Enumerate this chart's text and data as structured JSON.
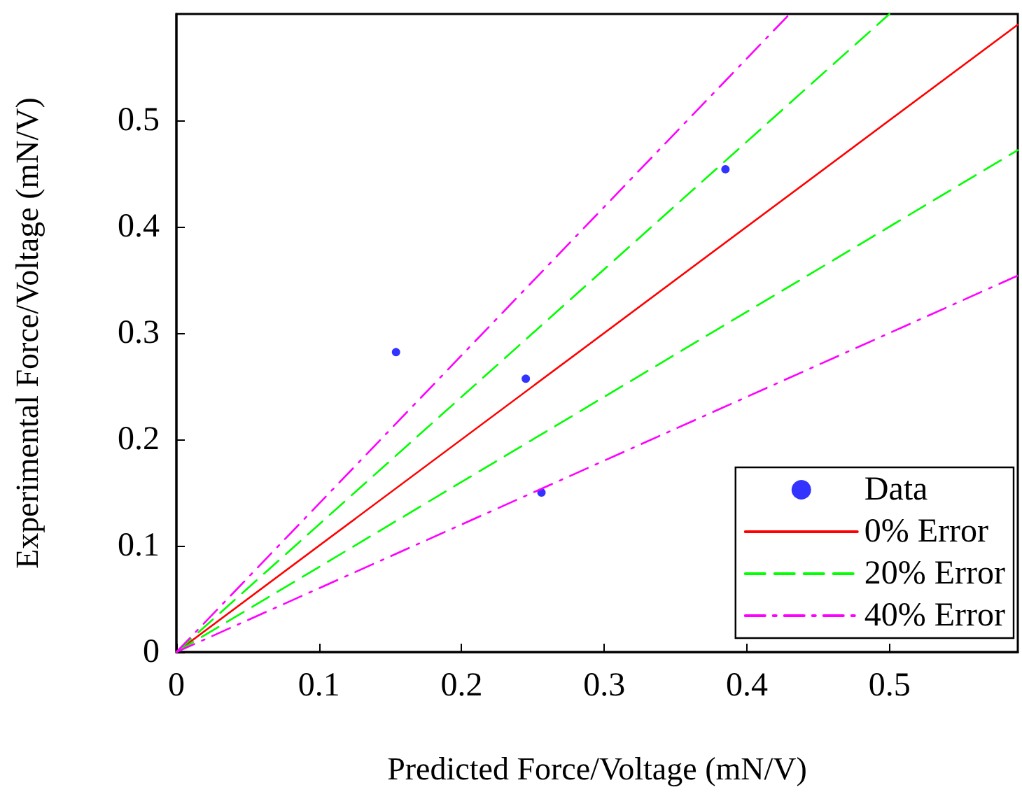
{
  "chart_data": {
    "type": "scatter",
    "xlabel": "Predicted Force/Voltage (mN/V)",
    "ylabel": "Experimental Force/Voltage (mN/V)",
    "xlim": [
      0,
      0.59
    ],
    "ylim": [
      0,
      0.6
    ],
    "xticks": [
      0,
      0.1,
      0.2,
      0.3,
      0.4,
      0.5
    ],
    "yticks": [
      0,
      0.1,
      0.2,
      0.3,
      0.4,
      0.5
    ],
    "grid": false,
    "legend": "bottom right",
    "series": [
      {
        "name": "Data",
        "marker": "circle",
        "color": "#0000ff",
        "x": [
          0.154,
          0.245,
          0.385,
          0.256
        ],
        "values": [
          0.282,
          0.257,
          0.454,
          0.15
        ]
      },
      {
        "name": "0% Error",
        "type": "line",
        "line_style": "solid",
        "color": "#ff0000",
        "x": [
          0,
          0.59
        ],
        "values": [
          0,
          0.59
        ]
      },
      {
        "name": "20% Error",
        "type": "line",
        "line_style": "dashed",
        "color": "#00ff00",
        "x": [
          0,
          0.5
        ],
        "values": [
          0,
          0.6
        ]
      },
      {
        "type": "line",
        "line_style": "dashed",
        "color": "#00ff00",
        "x": [
          0,
          0.59
        ],
        "values": [
          0,
          0.472
        ]
      },
      {
        "name": "40% Error",
        "type": "line",
        "line_style": "dashdot",
        "color": "#ff00ff",
        "x": [
          0,
          0.43
        ],
        "values": [
          0,
          0.6
        ]
      },
      {
        "type": "line",
        "line_style": "dashdot",
        "color": "#ff00ff",
        "x": [
          0,
          0.59
        ],
        "values": [
          0,
          0.354
        ]
      }
    ]
  }
}
